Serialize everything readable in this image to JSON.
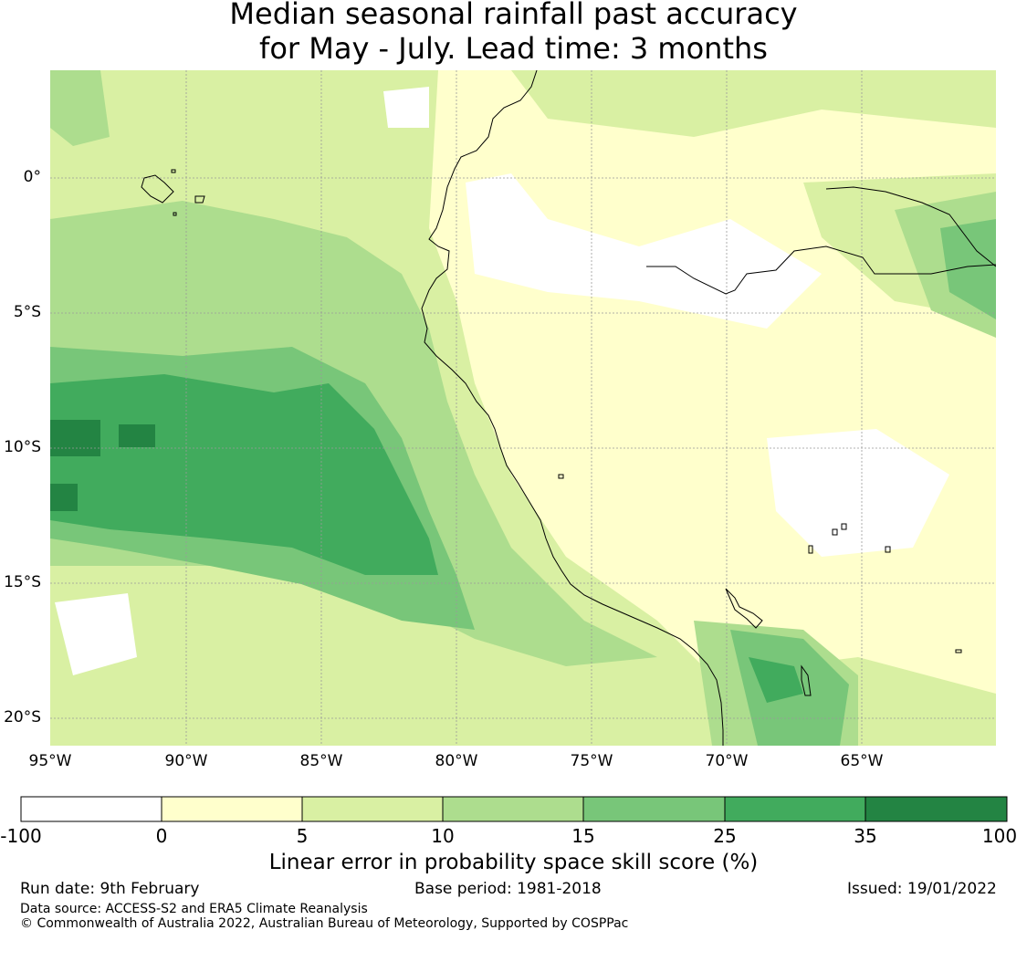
{
  "title": {
    "line1": "Median seasonal rainfall past accuracy",
    "line2": "for May - July. Lead time: 3 months"
  },
  "map": {
    "lat_labels": [
      "0°",
      "5°S",
      "10°S",
      "15°S",
      "20°S"
    ],
    "lon_labels": [
      "95°W",
      "90°W",
      "85°W",
      "80°W",
      "75°W",
      "70°W",
      "65°W"
    ],
    "extent": {
      "lon": [
        -95,
        -60
      ],
      "lat": [
        -21,
        4
      ]
    }
  },
  "colorbar": {
    "ticks": [
      "-100",
      "0",
      "5",
      "10",
      "15",
      "25",
      "35",
      "100"
    ],
    "colors": [
      "#ffffff",
      "#ffffcc",
      "#d9f0a3",
      "#addd8e",
      "#78c679",
      "#41ab5d",
      "#238443"
    ],
    "label": "Linear error in probability space skill score (%)"
  },
  "footer": {
    "run_date": "Run date: 9th February",
    "base_period": "Base period: 1981-2018",
    "issued": "Issued: 19/01/2022",
    "data_source": "Data source: ACCESS-S2 and ERA5 Climate Reanalysis",
    "copyright": "© Commonwealth of Australia 2022, Australian Bureau of Meteorology, Supported by COSPPac"
  }
}
